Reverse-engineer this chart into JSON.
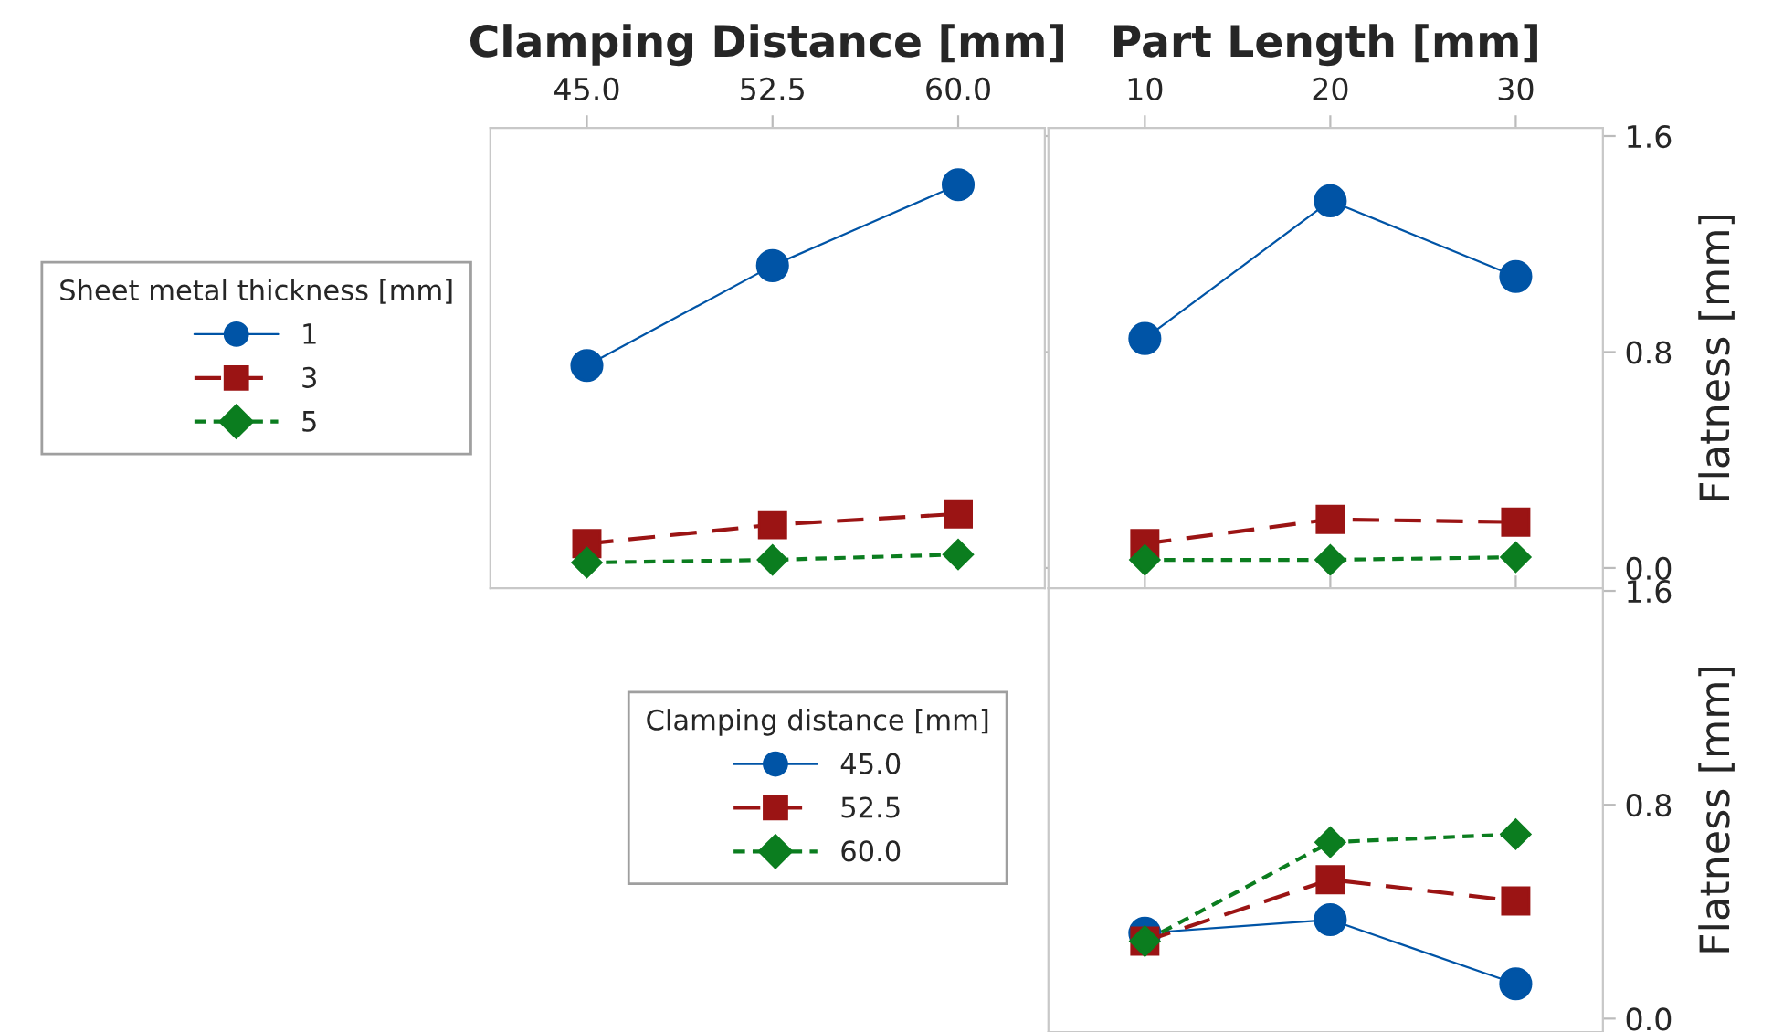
{
  "chart_data": [
    {
      "type": "line",
      "xlabel": "Clamping Distance [mm]",
      "x": [
        45.0,
        52.5,
        60.0
      ],
      "xlim": [
        41.1,
        63.5
      ],
      "xticks": [
        {
          "value": 45.0,
          "label": "45.0"
        },
        {
          "value": 52.5,
          "label": "52.5"
        },
        {
          "value": 60.0,
          "label": "60.0"
        }
      ],
      "ylim": [
        -0.075,
        1.63
      ],
      "yticks": [
        0.0,
        0.8,
        1.6
      ],
      "tick_labels": "x",
      "legend": "left",
      "legend_title": "Sheet metal thickness [mm]",
      "series": [
        {
          "name": "1",
          "color": "#0054a6",
          "marker": "circle",
          "line_style": "solid",
          "values": [
            0.75,
            1.12,
            1.42
          ]
        },
        {
          "name": "3",
          "color": "#9b1414",
          "marker": "square",
          "line_style": "dashed",
          "values": [
            0.09,
            0.16,
            0.2
          ]
        },
        {
          "name": "5",
          "color": "#0b7d1f",
          "marker": "diamond",
          "line_style": "dotted",
          "values": [
            0.02,
            0.03,
            0.05
          ]
        }
      ]
    },
    {
      "type": "line",
      "xlabel": "Part Length [mm]",
      "ylabel": "Flatness [mm]",
      "x": [
        10,
        20,
        30
      ],
      "xlim": [
        4.8,
        34.7
      ],
      "xticks": [
        10,
        20,
        30
      ],
      "ylim": [
        -0.075,
        1.63
      ],
      "yticks": [
        {
          "value": 0.0,
          "label": "0.0"
        },
        {
          "value": 0.8,
          "label": "0.8"
        },
        {
          "value": 1.6,
          "label": "1.6"
        }
      ],
      "series": [
        {
          "color": "#0054a6",
          "marker": "circle",
          "line_style": "solid",
          "values": [
            0.85,
            1.36,
            1.08
          ]
        },
        {
          "color": "#9b1414",
          "marker": "square",
          "line_style": "dashed",
          "values": [
            0.09,
            0.18,
            0.17
          ]
        },
        {
          "color": "#0b7d1f",
          "marker": "diamond",
          "line_style": "dotted",
          "values": [
            0.03,
            0.03,
            0.04
          ]
        }
      ]
    },
    {
      "type": "line",
      "ylabel": "Flatness [mm]",
      "x": [
        10,
        20,
        30
      ],
      "xlim": [
        4.8,
        34.7
      ],
      "xticks": [
        10,
        20,
        30
      ],
      "ylim": [
        -0.05,
        1.61
      ],
      "yticks": [
        {
          "value": 0.0,
          "label": "0.0"
        },
        {
          "value": 0.8,
          "label": "0.8"
        },
        {
          "value": 1.6,
          "label": "1.6"
        }
      ],
      "tick_labels": "y",
      "legend": "left",
      "legend_title": "Clamping distance [mm]",
      "series": [
        {
          "name": "45.0",
          "color": "#0054a6",
          "marker": "circle",
          "line_style": "solid",
          "values": [
            0.32,
            0.37,
            0.13
          ]
        },
        {
          "name": "52.5",
          "color": "#9b1414",
          "marker": "square",
          "line_style": "dashed",
          "values": [
            0.29,
            0.52,
            0.44
          ]
        },
        {
          "name": "60.0",
          "color": "#0b7d1f",
          "marker": "diamond",
          "line_style": "dotted",
          "values": [
            0.29,
            0.66,
            0.69
          ]
        }
      ]
    }
  ]
}
